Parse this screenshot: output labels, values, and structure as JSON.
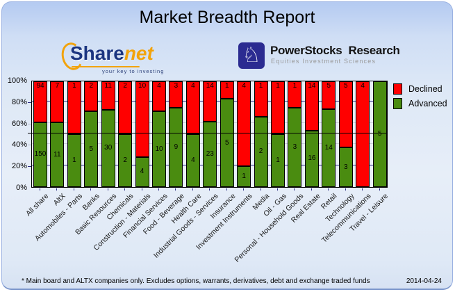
{
  "header": {
    "title": "Market Breadth Report"
  },
  "logos": {
    "sharenet": {
      "name_part1": "Share",
      "name_part2": "net",
      "tagline": "your key to investing"
    },
    "powerstocks": {
      "name_part1": "PowerStocks",
      "name_part2": "Research",
      "subtitle": "Equities Investment Sciences",
      "icon": "knight-chess-icon",
      "icon_glyph": "♘"
    }
  },
  "chart_data": {
    "type": "bar",
    "stacked": true,
    "stacking": "percent",
    "title": "Market Breadth Report",
    "categories": [
      "All share",
      "AltX",
      "Automobiles - Parts",
      "Banks",
      "Basic Resources",
      "Chemicals",
      "Construction - Materials",
      "Financial Services",
      "Food - Beverage",
      "Health Care",
      "Industrial Goods - Services",
      "Insurance",
      "Investment Instruments",
      "Media",
      "Oil - Gas",
      "Personal - Household Goods",
      "Real Estate",
      "Retail",
      "Technology",
      "Telecommunications",
      "Travel - Leisure"
    ],
    "series": [
      {
        "name": "Declined",
        "color": "#ff0000",
        "values": [
          94,
          7,
          1,
          2,
          11,
          2,
          10,
          4,
          3,
          4,
          14,
          1,
          4,
          1,
          1,
          1,
          14,
          5,
          5,
          4,
          0
        ]
      },
      {
        "name": "Advanced",
        "color": "#4a8c10",
        "values": [
          150,
          11,
          1,
          5,
          30,
          2,
          4,
          10,
          9,
          4,
          23,
          5,
          1,
          2,
          1,
          3,
          16,
          14,
          3,
          0,
          5
        ]
      }
    ],
    "xlabel": "",
    "ylabel": "",
    "ylim": [
      0,
      100
    ],
    "y_ticks": [
      "0%",
      "20%",
      "40%",
      "60%",
      "80%",
      "100%"
    ],
    "grid": true,
    "reference_line_pct": 50,
    "legend_position": "top-right"
  },
  "legend": {
    "declined_label": "Declined",
    "advanced_label": "Advanced"
  },
  "footer": {
    "note": "* Main board and ALTX companies only. Excludes options, warrants, derivatives, debt and exchange traded funds",
    "date": "2014-04-24"
  }
}
